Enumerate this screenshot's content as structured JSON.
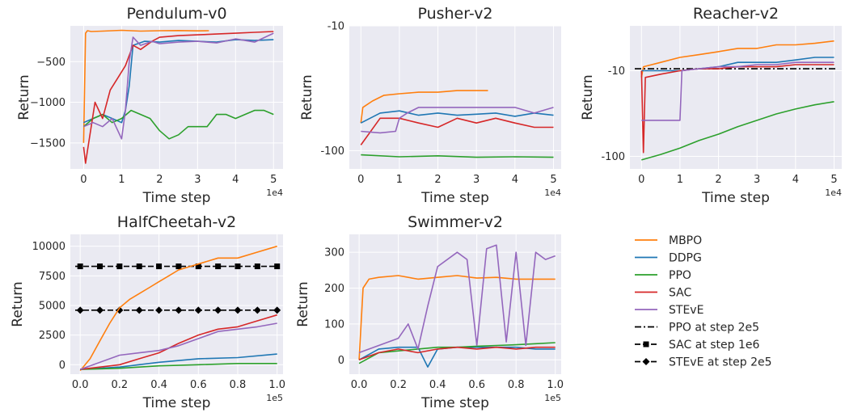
{
  "colors": {
    "MBPO": "#ff7f0e",
    "DDPG": "#1f77b4",
    "PPO": "#2ca02c",
    "SAC": "#d62728",
    "STEvE": "#9467bd",
    "ref": "#000000",
    "panel_bg": "#eaeaf2",
    "grid": "#ffffff"
  },
  "legend": {
    "entries": [
      {
        "label": "MBPO",
        "color_key": "MBPO",
        "style": "solid",
        "marker": "none"
      },
      {
        "label": "DDPG",
        "color_key": "DDPG",
        "style": "solid",
        "marker": "none"
      },
      {
        "label": "PPO",
        "color_key": "PPO",
        "style": "solid",
        "marker": "none"
      },
      {
        "label": "SAC",
        "color_key": "SAC",
        "style": "solid",
        "marker": "none"
      },
      {
        "label": "STEvE",
        "color_key": "STEvE",
        "style": "solid",
        "marker": "none"
      },
      {
        "label": "PPO at step 2e5",
        "color_key": "ref",
        "style": "dashdot",
        "marker": "none"
      },
      {
        "label": "SAC at step 1e6",
        "color_key": "ref",
        "style": "dashed",
        "marker": "square"
      },
      {
        "label": "STEvE at step 2e5",
        "color_key": "ref",
        "style": "dashed",
        "marker": "diamond"
      }
    ]
  },
  "chart_data": [
    {
      "type": "line",
      "title": "Pendulum-v0",
      "xlabel": "Time step",
      "ylabel": "Return",
      "x_scale": "1e4",
      "xlim": [
        -0.35,
        5.25
      ],
      "ylim": [
        -1820,
        -60
      ],
      "yscale": "linear",
      "xticks": [
        0,
        1,
        2,
        3,
        4,
        5
      ],
      "xtick_labels": [
        "0",
        "1",
        "2",
        "3",
        "4",
        "5"
      ],
      "yticks": [
        -1500,
        -1000,
        -500
      ],
      "ytick_labels": [
        "−1500",
        "−1000",
        "−500"
      ],
      "series": [
        {
          "name": "MBPO",
          "x": [
            0,
            0.05,
            0.1,
            0.2,
            0.5,
            1.0,
            1.5,
            2.0,
            2.5,
            3.0,
            3.3
          ],
          "y": [
            -1500,
            -150,
            -120,
            -130,
            -125,
            -115,
            -125,
            -120,
            -118,
            -122,
            -120
          ]
        },
        {
          "name": "DDPG",
          "x": [
            0,
            0.25,
            0.5,
            0.75,
            1.0,
            1.1,
            1.2,
            1.3,
            1.6,
            2.0,
            2.5,
            3.0,
            3.5,
            4.0,
            4.5,
            5.0
          ],
          "y": [
            -1250,
            -1200,
            -1150,
            -1200,
            -1250,
            -1100,
            -800,
            -300,
            -250,
            -260,
            -240,
            -250,
            -260,
            -230,
            -240,
            -230
          ]
        },
        {
          "name": "PPO",
          "x": [
            0,
            0.25,
            0.5,
            0.75,
            1.0,
            1.25,
            1.5,
            1.75,
            2.0,
            2.25,
            2.5,
            2.75,
            3.0,
            3.25,
            3.5,
            3.75,
            4.0,
            4.25,
            4.5,
            4.75,
            5.0
          ],
          "y": [
            -1300,
            -1200,
            -1150,
            -1250,
            -1200,
            -1100,
            -1150,
            -1200,
            -1350,
            -1450,
            -1400,
            -1300,
            -1300,
            -1300,
            -1150,
            -1150,
            -1200,
            -1150,
            -1100,
            -1100,
            -1150
          ]
        },
        {
          "name": "SAC",
          "x": [
            0,
            0.05,
            0.1,
            0.3,
            0.5,
            0.7,
            0.9,
            1.1,
            1.3,
            1.5,
            1.8,
            2.0,
            2.5,
            3.0,
            3.5,
            4.0,
            4.5,
            5.0
          ],
          "y": [
            -1550,
            -1750,
            -1600,
            -1000,
            -1200,
            -850,
            -700,
            -550,
            -300,
            -350,
            -250,
            -200,
            -180,
            -170,
            -160,
            -150,
            -140,
            -130
          ]
        },
        {
          "name": "STEvE",
          "x": [
            0,
            0.25,
            0.5,
            0.75,
            1.0,
            1.1,
            1.2,
            1.3,
            1.5,
            1.8,
            2.0,
            2.5,
            3.0,
            3.5,
            4.0,
            4.5,
            5.0
          ],
          "y": [
            -1300,
            -1250,
            -1300,
            -1200,
            -1450,
            -1100,
            -500,
            -200,
            -300,
            -250,
            -280,
            -260,
            -250,
            -270,
            -220,
            -260,
            -150
          ]
        }
      ],
      "reference_lines": []
    },
    {
      "type": "line",
      "title": "Pusher-v2",
      "xlabel": "Time step",
      "ylabel": "Return",
      "x_scale": "1e4",
      "xlim": [
        -0.3,
        5.2
      ],
      "ylim": [
        -140,
        -10
      ],
      "yscale": "log",
      "xticks": [
        0,
        1,
        2,
        3,
        4,
        5
      ],
      "xtick_labels": [
        "0",
        "1",
        "2",
        "3",
        "4",
        "5"
      ],
      "yticks": [
        -100,
        -10
      ],
      "ytick_labels": [
        "-100",
        "-10"
      ],
      "series": [
        {
          "name": "MBPO",
          "x": [
            0,
            0.05,
            0.3,
            0.6,
            1.0,
            1.5,
            2.0,
            2.5,
            3.0,
            3.3
          ],
          "y": [
            -60,
            -45,
            -40,
            -36,
            -35,
            -34,
            -34,
            -33,
            -33,
            -33
          ]
        },
        {
          "name": "DDPG",
          "x": [
            0,
            0.5,
            1.0,
            1.5,
            2.0,
            2.5,
            3.0,
            3.5,
            4.0,
            4.5,
            5.0
          ],
          "y": [
            -60,
            -50,
            -48,
            -52,
            -50,
            -52,
            -51,
            -50,
            -53,
            -50,
            -52
          ]
        },
        {
          "name": "PPO",
          "x": [
            0,
            1.0,
            2.0,
            3.0,
            4.0,
            5.0
          ],
          "y": [
            -108,
            -112,
            -110,
            -113,
            -112,
            -113
          ]
        },
        {
          "name": "SAC",
          "x": [
            0,
            0.5,
            1.0,
            1.5,
            2.0,
            2.5,
            3.0,
            3.5,
            4.0,
            4.5,
            5.0
          ],
          "y": [
            -90,
            -55,
            -55,
            -60,
            -65,
            -55,
            -60,
            -55,
            -60,
            -65,
            -65
          ]
        },
        {
          "name": "STEvE",
          "x": [
            0,
            0.5,
            0.9,
            1.0,
            1.2,
            1.5,
            2.0,
            2.5,
            3.0,
            3.5,
            4.0,
            4.5,
            5.0
          ],
          "y": [
            -70,
            -72,
            -70,
            -55,
            -50,
            -45,
            -45,
            -45,
            -45,
            -45,
            -45,
            -50,
            -45
          ]
        }
      ],
      "reference_lines": []
    },
    {
      "type": "line",
      "title": "Reacher-v2",
      "xlabel": "Time step",
      "ylabel": "Return",
      "x_scale": "1e4",
      "xlim": [
        -0.3,
        5.2
      ],
      "ylim": [
        -140,
        -3
      ],
      "yscale": "log",
      "xticks": [
        0,
        1,
        2,
        3,
        4,
        5
      ],
      "xtick_labels": [
        "0",
        "1",
        "2",
        "3",
        "4",
        "5"
      ],
      "yticks": [
        -100,
        -10
      ],
      "ytick_labels": [
        "-100",
        "-10"
      ],
      "series": [
        {
          "name": "MBPO",
          "x": [
            0,
            0.05,
            0.5,
            1.0,
            1.5,
            2.0,
            2.5,
            3.0,
            3.5,
            4.0,
            4.5,
            5.0
          ],
          "y": [
            -12,
            -9,
            -8,
            -7,
            -6.5,
            -6,
            -5.5,
            -5.5,
            -5,
            -5,
            -4.8,
            -4.5
          ]
        },
        {
          "name": "DDPG",
          "x": [
            0,
            0.5,
            1.0,
            1.5,
            2.0,
            2.5,
            3.0,
            3.5,
            4.0,
            4.5,
            5.0
          ],
          "y": [
            -10,
            -10,
            -10,
            -9.5,
            -9,
            -8,
            -8,
            -8,
            -7.5,
            -7,
            -7
          ]
        },
        {
          "name": "PPO",
          "x": [
            0,
            0.5,
            1.0,
            1.5,
            2.0,
            2.5,
            3.0,
            3.5,
            4.0,
            4.5,
            5.0
          ],
          "y": [
            -110,
            -95,
            -80,
            -65,
            -55,
            -45,
            -38,
            -32,
            -28,
            -25,
            -23
          ]
        },
        {
          "name": "SAC",
          "x": [
            0,
            0.05,
            0.1,
            0.5,
            1.0,
            1.5,
            2.0,
            2.5,
            3.0,
            3.5,
            4.0,
            4.5,
            5.0
          ],
          "y": [
            -10,
            -90,
            -12,
            -11,
            -10,
            -9.5,
            -9.5,
            -9,
            -9,
            -9,
            -8.5,
            -8.5,
            -8.5
          ]
        },
        {
          "name": "STEvE",
          "x": [
            0,
            0.5,
            1.0,
            1.05,
            1.5,
            2.0,
            2.5,
            3.0,
            3.5,
            4.0,
            4.5,
            5.0
          ],
          "y": [
            -38,
            -38,
            -38,
            -10,
            -9.5,
            -9,
            -9,
            -8.5,
            -8.5,
            -8,
            -8,
            -8
          ]
        }
      ],
      "reference_lines": [
        {
          "label": "PPO at step 2e5",
          "y": -9.5,
          "style": "dashdot",
          "marker": "none"
        }
      ]
    },
    {
      "type": "line",
      "title": "HalfCheetah-v2",
      "xlabel": "Time step",
      "ylabel": "Return",
      "x_scale": "1e5",
      "xlim": [
        -0.05,
        1.03
      ],
      "ylim": [
        -800,
        11000
      ],
      "yscale": "linear",
      "xticks": [
        0.0,
        0.2,
        0.4,
        0.6,
        0.8,
        1.0
      ],
      "xtick_labels": [
        "0.0",
        "0.2",
        "0.4",
        "0.6",
        "0.8",
        "1.0"
      ],
      "yticks": [
        0,
        2500,
        5000,
        7500,
        10000
      ],
      "ytick_labels": [
        "0",
        "2500",
        "5000",
        "7500",
        "10000"
      ],
      "series": [
        {
          "name": "MBPO",
          "x": [
            0,
            0.05,
            0.1,
            0.15,
            0.2,
            0.25,
            0.3,
            0.35,
            0.4,
            0.45,
            0.5,
            0.6,
            0.7,
            0.8,
            0.9,
            1.0
          ],
          "y": [
            -500,
            500,
            2000,
            3500,
            4800,
            5500,
            6000,
            6500,
            7000,
            7500,
            8000,
            8500,
            9000,
            9000,
            9500,
            10000
          ]
        },
        {
          "name": "DDPG",
          "x": [
            0,
            0.2,
            0.4,
            0.6,
            0.8,
            1.0
          ],
          "y": [
            -400,
            -200,
            200,
            500,
            600,
            900
          ]
        },
        {
          "name": "PPO",
          "x": [
            0,
            0.2,
            0.4,
            0.6,
            0.8,
            1.0
          ],
          "y": [
            -400,
            -300,
            -100,
            0,
            100,
            100
          ]
        },
        {
          "name": "SAC",
          "x": [
            0,
            0.2,
            0.3,
            0.4,
            0.5,
            0.6,
            0.7,
            0.8,
            0.9,
            1.0
          ],
          "y": [
            -400,
            0,
            500,
            1000,
            1800,
            2500,
            3000,
            3200,
            3700,
            4200
          ]
        },
        {
          "name": "STEvE",
          "x": [
            0,
            0.2,
            0.3,
            0.4,
            0.5,
            0.6,
            0.7,
            0.8,
            0.9,
            1.0
          ],
          "y": [
            -400,
            800,
            1000,
            1200,
            1600,
            2200,
            2800,
            3000,
            3200,
            3500
          ]
        }
      ],
      "reference_lines": [
        {
          "label": "SAC at step 1e6",
          "y": 8300,
          "style": "dashed",
          "marker": "square"
        },
        {
          "label": "STEvE at step 2e5",
          "y": 4600,
          "style": "dashed",
          "marker": "diamond"
        }
      ]
    },
    {
      "type": "line",
      "title": "Swimmer-v2",
      "xlabel": "Time step",
      "ylabel": "Return",
      "x_scale": "1e5",
      "xlim": [
        -0.05,
        1.03
      ],
      "ylim": [
        -40,
        350
      ],
      "yscale": "linear",
      "xticks": [
        0.0,
        0.2,
        0.4,
        0.6,
        0.8,
        1.0
      ],
      "xtick_labels": [
        "0.0",
        "0.2",
        "0.4",
        "0.6",
        "0.8",
        "1.0"
      ],
      "yticks": [
        0,
        100,
        200,
        300
      ],
      "ytick_labels": [
        "0",
        "100",
        "200",
        "300"
      ],
      "series": [
        {
          "name": "MBPO",
          "x": [
            0,
            0.02,
            0.05,
            0.1,
            0.2,
            0.3,
            0.4,
            0.5,
            0.6,
            0.7,
            0.8,
            0.9,
            1.0
          ],
          "y": [
            0,
            200,
            225,
            230,
            235,
            225,
            230,
            235,
            228,
            230,
            225,
            225,
            225
          ]
        },
        {
          "name": "DDPG",
          "x": [
            0,
            0.1,
            0.2,
            0.3,
            0.35,
            0.4,
            0.5,
            0.6,
            0.7,
            0.8,
            0.9,
            1.0
          ],
          "y": [
            0,
            30,
            35,
            35,
            -20,
            30,
            35,
            35,
            35,
            35,
            30,
            30
          ]
        },
        {
          "name": "PPO",
          "x": [
            0,
            0.1,
            0.2,
            0.3,
            0.4,
            0.5,
            0.6,
            0.7,
            0.8,
            0.9,
            1.0
          ],
          "y": [
            -10,
            20,
            25,
            30,
            35,
            35,
            38,
            40,
            42,
            45,
            48
          ]
        },
        {
          "name": "SAC",
          "x": [
            0,
            0.1,
            0.2,
            0.3,
            0.4,
            0.5,
            0.6,
            0.7,
            0.8,
            0.9,
            1.0
          ],
          "y": [
            0,
            20,
            30,
            20,
            30,
            35,
            30,
            35,
            30,
            35,
            35
          ]
        },
        {
          "name": "STEvE",
          "x": [
            0,
            0.1,
            0.2,
            0.25,
            0.3,
            0.35,
            0.4,
            0.5,
            0.55,
            0.6,
            0.65,
            0.7,
            0.75,
            0.8,
            0.85,
            0.9,
            0.95,
            1.0
          ],
          "y": [
            20,
            40,
            60,
            100,
            30,
            150,
            260,
            300,
            280,
            40,
            310,
            320,
            50,
            300,
            40,
            300,
            280,
            290
          ]
        }
      ],
      "reference_lines": []
    }
  ]
}
